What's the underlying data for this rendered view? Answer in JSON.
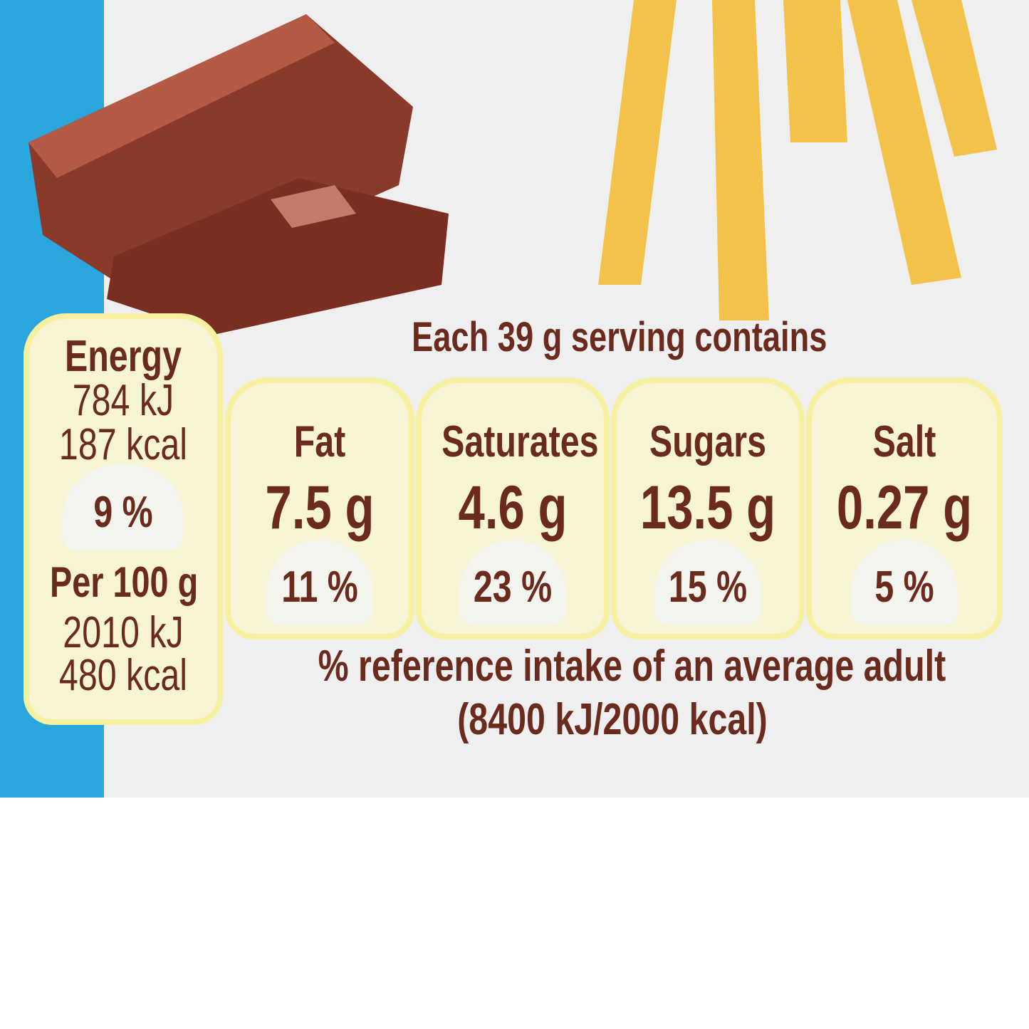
{
  "heading": "Each 39 g serving contains",
  "energy": {
    "label": "Energy",
    "kj": "784 kJ",
    "kcal": "187 kcal",
    "ri": "9 %",
    "per100_label": "Per 100 g",
    "per100_kj": "2010 kJ",
    "per100_kcal": "480 kcal"
  },
  "nutrients": [
    {
      "label": "Fat",
      "amount": "7.5 g",
      "ri": "11 %"
    },
    {
      "label": "Saturates",
      "amount": "4.6 g",
      "ri": "23 %"
    },
    {
      "label": "Sugars",
      "amount": "13.5 g",
      "ri": "15 %"
    },
    {
      "label": "Salt",
      "amount": "0.27 g",
      "ri": "5 %"
    }
  ],
  "footnote": {
    "line1": "% reference intake of an average adult",
    "line2": "(8400 kJ/2000 kcal)"
  },
  "colors": {
    "text": "#6b2a1e",
    "border": "#f6f0a0",
    "fill": "#f7f4d6",
    "strip": "#2aa6dd"
  }
}
